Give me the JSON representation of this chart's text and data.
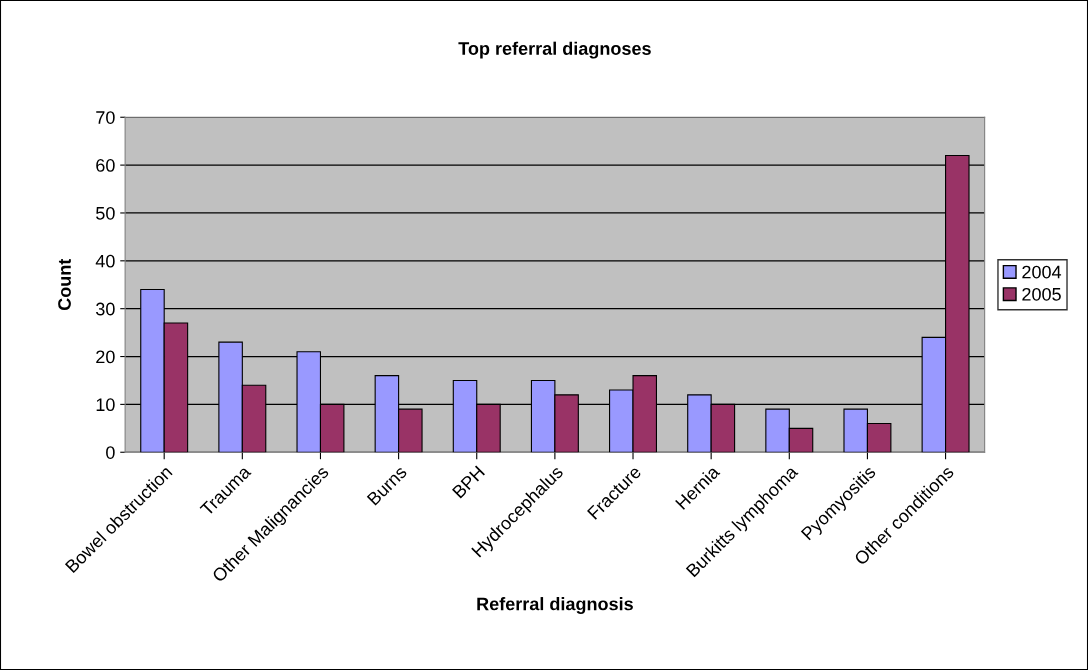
{
  "chart_data": {
    "type": "bar",
    "title": "Top referral diagnoses",
    "xlabel": "Referral diagnosis",
    "ylabel": "Count",
    "categories": [
      "Bowel obstruction",
      "Trauma",
      "Other Malignancies",
      "Burns",
      "BPH",
      "Hydrocephalus",
      "Fracture",
      "Hernia",
      "Burkitts lymphoma",
      "Pyomyositis",
      "Other conditions"
    ],
    "series": [
      {
        "name": "2004",
        "color": "#9999ff",
        "values": [
          34,
          23,
          21,
          16,
          15,
          15,
          13,
          12,
          9,
          9,
          24
        ]
      },
      {
        "name": "2005",
        "color": "#993366",
        "values": [
          27,
          14,
          10,
          9,
          10,
          12,
          16,
          10,
          5,
          6,
          62
        ]
      }
    ],
    "ylim": [
      0,
      70
    ],
    "yticks": [
      0,
      10,
      20,
      30,
      40,
      50,
      60,
      70
    ],
    "grid": "y",
    "legend": "right"
  }
}
